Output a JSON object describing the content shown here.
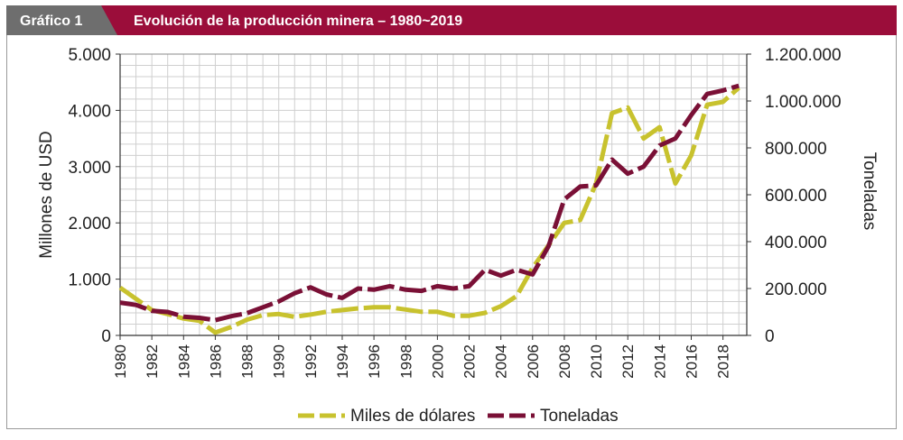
{
  "header": {
    "tag": "Gráfico 1",
    "title": "Evolución de la producción minera – 1980~2019"
  },
  "colors": {
    "header_bg": "#9b0d3a",
    "tag_bg": "#6e6e6e",
    "series_usd": "#c8c22e",
    "series_ton": "#7a1036",
    "grid": "#cfcfcf",
    "frame": "#9a9a9a"
  },
  "chart_data": {
    "type": "line",
    "x": [
      1980,
      1981,
      1982,
      1983,
      1984,
      1985,
      1986,
      1987,
      1988,
      1989,
      1990,
      1991,
      1992,
      1993,
      1994,
      1995,
      1996,
      1997,
      1998,
      1999,
      2000,
      2001,
      2002,
      2003,
      2004,
      2005,
      2006,
      2007,
      2008,
      2009,
      2010,
      2011,
      2012,
      2013,
      2014,
      2015,
      2016,
      2017,
      2018,
      2019
    ],
    "xticks": [
      "1980",
      "1982",
      "1984",
      "1986",
      "1988",
      "1990",
      "1992",
      "1994",
      "1996",
      "1998",
      "2000",
      "2002",
      "2004",
      "2006",
      "2008",
      "2010",
      "2012",
      "2014",
      "2016",
      "2018"
    ],
    "xlim": [
      1980,
      2019.5
    ],
    "ylabel_left": "Millones de USD",
    "ylabel_right": "Toneladas",
    "ylim_left": [
      0,
      5000
    ],
    "ylim_right": [
      0,
      1200000
    ],
    "yticks_left": [
      "0",
      "1.000",
      "2.000",
      "3.000",
      "4.000",
      "5.000"
    ],
    "yticks_right": [
      "0",
      "200.000",
      "400.000",
      "600.000",
      "800.000",
      "1.000.000",
      "1.200.000"
    ],
    "grid": true,
    "legend_position": "bottom-center",
    "series": [
      {
        "name": "Miles de dólares",
        "axis": "left",
        "style": "dashed",
        "values": [
          850,
          650,
          450,
          380,
          300,
          260,
          50,
          150,
          280,
          360,
          380,
          330,
          370,
          420,
          450,
          480,
          500,
          500,
          460,
          420,
          420,
          350,
          350,
          400,
          520,
          700,
          1200,
          1600,
          2000,
          2050,
          2700,
          3950,
          4050,
          3500,
          3700,
          2700,
          3200,
          4100,
          4150,
          4400
        ]
      },
      {
        "name": "Toneladas",
        "axis": "right",
        "style": "dashed",
        "values": [
          140000,
          130000,
          105000,
          100000,
          80000,
          75000,
          65000,
          82000,
          95000,
          120000,
          145000,
          180000,
          205000,
          175000,
          160000,
          200000,
          195000,
          210000,
          195000,
          190000,
          210000,
          200000,
          210000,
          280000,
          255000,
          280000,
          260000,
          380000,
          580000,
          635000,
          640000,
          750000,
          690000,
          720000,
          810000,
          840000,
          940000,
          1030000,
          1045000,
          1065000
        ]
      }
    ]
  }
}
